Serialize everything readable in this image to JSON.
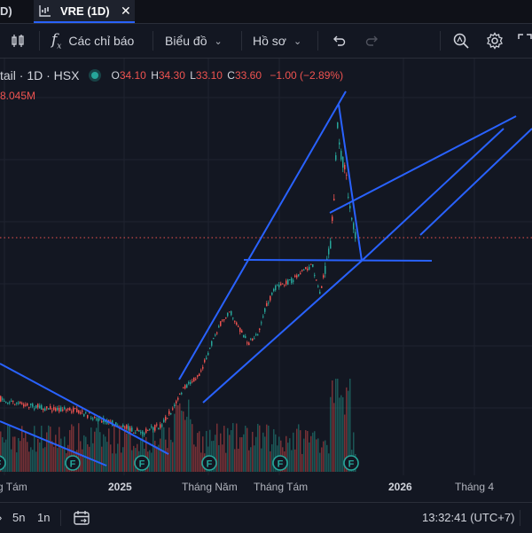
{
  "tabs": {
    "prev_label": "D)",
    "active_label": "VRE (1D)"
  },
  "toolbar": {
    "indicators_label": "Các chỉ báo",
    "chart_type_label": "Biểu đồ",
    "profile_label": "Hồ sơ"
  },
  "legend": {
    "symbol_line": "tail · 1D · HSX",
    "open_key": "O",
    "open": "34.10",
    "high_key": "H",
    "high": "34.30",
    "low_key": "L",
    "low": "33.10",
    "close_key": "C",
    "close": "33.60",
    "change": "−1.00 (−2.89%)",
    "volume": "8.045M"
  },
  "colors": {
    "background": "#131722",
    "up": "#26a69a",
    "down": "#ef5350",
    "trendline": "#2962ff",
    "dividend_marker": "#26a69a"
  },
  "x_axis": {
    "labels": [
      "g Tám",
      "2025",
      "Tháng Năm",
      "Tháng Tám",
      "2026",
      "Tháng 4"
    ]
  },
  "dividend_marker_label": "F",
  "bottom": {
    "range_5d": "5n",
    "range_1m": "1n",
    "clock": "13:32:41 (UTC+7)"
  },
  "chart_data": {
    "type": "candlestick",
    "symbol": "VRE",
    "interval": "1D",
    "exchange": "HSX",
    "last": {
      "open": 34.1,
      "high": 34.3,
      "low": 33.1,
      "close": 33.6,
      "change": -1.0,
      "change_pct": -2.89,
      "volume_millions": 8.045
    },
    "markers": {
      "dividend_count": 6
    },
    "trendlines_drawn": 8
  }
}
